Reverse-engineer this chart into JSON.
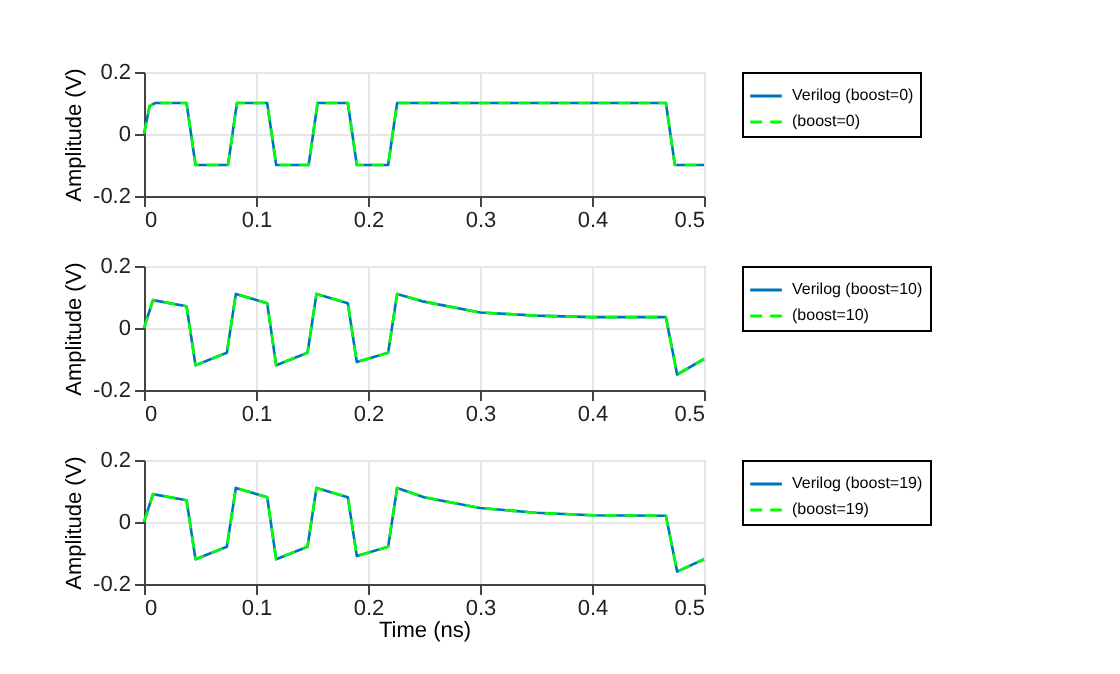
{
  "chart_data": [
    {
      "type": "line",
      "ylabel": "Amplitude (V)",
      "xlim": [
        0,
        0.5
      ],
      "xticks": [
        0,
        0.1,
        0.2,
        0.3,
        0.4,
        0.5
      ],
      "ylim": [
        -0.2,
        0.2
      ],
      "yticks": [
        -0.2,
        0,
        0.2
      ],
      "grid": true,
      "legend": "right",
      "x": [
        0,
        0.005,
        0.01,
        0.038,
        0.042,
        0.046,
        0.075,
        0.079,
        0.083,
        0.11,
        0.114,
        0.118,
        0.147,
        0.151,
        0.155,
        0.182,
        0.186,
        0.19,
        0.218,
        0.222,
        0.226,
        0.466,
        0.47,
        0.474,
        0.5
      ],
      "series": [
        {
          "name": "Verilog (boost=0)",
          "color": "#0072bd",
          "line_style": "solid",
          "values": [
            0,
            0.09,
            0.1,
            0.1,
            0,
            -0.1,
            -0.1,
            0,
            0.1,
            0.1,
            0,
            -0.1,
            -0.1,
            0,
            0.1,
            0.1,
            0,
            -0.1,
            -0.1,
            0,
            0.1,
            0.1,
            0,
            -0.1,
            -0.1
          ]
        },
        {
          "name": "(boost=0)",
          "color": "#00ff00",
          "line_style": "dashed",
          "values": [
            0,
            0.09,
            0.1,
            0.1,
            0,
            -0.1,
            -0.1,
            0,
            0.1,
            0.1,
            0,
            -0.1,
            -0.1,
            0,
            0.1,
            0.1,
            0,
            -0.1,
            -0.1,
            0,
            0.1,
            0.1,
            0,
            -0.1,
            -0.1
          ]
        }
      ]
    },
    {
      "type": "line",
      "ylabel": "Amplitude (V)",
      "xlim": [
        0,
        0.5
      ],
      "xticks": [
        0,
        0.1,
        0.2,
        0.3,
        0.4,
        0.5
      ],
      "ylim": [
        -0.2,
        0.2
      ],
      "yticks": [
        -0.2,
        0,
        0.2
      ],
      "grid": true,
      "legend": "right",
      "x": [
        0,
        0.008,
        0.038,
        0.046,
        0.074,
        0.082,
        0.11,
        0.118,
        0.146,
        0.154,
        0.182,
        0.19,
        0.218,
        0.226,
        0.25,
        0.3,
        0.35,
        0.4,
        0.466,
        0.476,
        0.5
      ],
      "series": [
        {
          "name": "Verilog (boost=10)",
          "color": "#0072bd",
          "line_style": "solid",
          "values": [
            0,
            0.09,
            0.07,
            -0.12,
            -0.08,
            0.11,
            0.08,
            -0.12,
            -0.08,
            0.11,
            0.08,
            -0.11,
            -0.08,
            0.11,
            0.085,
            0.05,
            0.04,
            0.035,
            0.035,
            -0.15,
            -0.1
          ]
        },
        {
          "name": "(boost=10)",
          "color": "#00ff00",
          "line_style": "dashed",
          "values": [
            0,
            0.09,
            0.07,
            -0.12,
            -0.08,
            0.11,
            0.08,
            -0.12,
            -0.08,
            0.11,
            0.08,
            -0.11,
            -0.08,
            0.11,
            0.085,
            0.05,
            0.04,
            0.035,
            0.035,
            -0.15,
            -0.1
          ]
        }
      ]
    },
    {
      "type": "line",
      "xlabel": "Time (ns)",
      "ylabel": "Amplitude (V)",
      "xlim": [
        0,
        0.5
      ],
      "xticks": [
        0,
        0.1,
        0.2,
        0.3,
        0.4,
        0.5
      ],
      "ylim": [
        -0.2,
        0.2
      ],
      "yticks": [
        -0.2,
        0,
        0.2
      ],
      "grid": true,
      "legend": "right",
      "x": [
        0,
        0.008,
        0.038,
        0.046,
        0.074,
        0.082,
        0.11,
        0.118,
        0.146,
        0.154,
        0.182,
        0.19,
        0.218,
        0.226,
        0.25,
        0.3,
        0.35,
        0.4,
        0.466,
        0.476,
        0.5
      ],
      "series": [
        {
          "name": "Verilog (boost=19)",
          "color": "#0072bd",
          "line_style": "solid",
          "values": [
            0,
            0.09,
            0.07,
            -0.12,
            -0.08,
            0.11,
            0.08,
            -0.12,
            -0.08,
            0.11,
            0.08,
            -0.11,
            -0.08,
            0.11,
            0.08,
            0.045,
            0.03,
            0.022,
            0.02,
            -0.16,
            -0.12
          ]
        },
        {
          "name": "(boost=19)",
          "color": "#00ff00",
          "line_style": "dashed",
          "values": [
            0,
            0.09,
            0.07,
            -0.12,
            -0.08,
            0.11,
            0.08,
            -0.12,
            -0.08,
            0.11,
            0.08,
            -0.11,
            -0.08,
            0.11,
            0.08,
            0.045,
            0.03,
            0.022,
            0.02,
            -0.16,
            -0.12
          ]
        }
      ]
    }
  ]
}
